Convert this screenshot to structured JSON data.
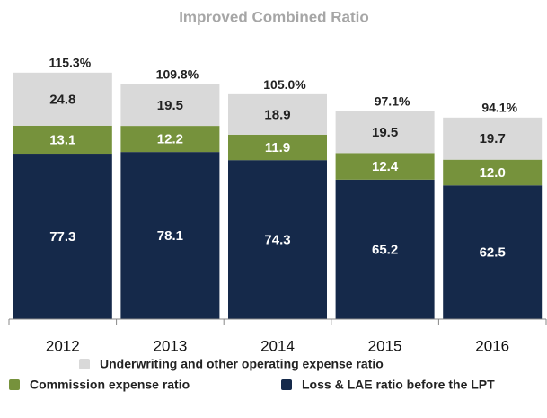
{
  "chart_data": {
    "type": "stacked_bar",
    "title": "Improved Combined Ratio",
    "categories": [
      "2012",
      "2013",
      "2014",
      "2015",
      "2016"
    ],
    "series": [
      {
        "name": "Loss & LAE ratio before the LPT",
        "color": "#15294a",
        "values": [
          77.3,
          78.1,
          74.3,
          65.2,
          62.5
        ]
      },
      {
        "name": "Commission expense ratio",
        "color": "#76923c",
        "values": [
          13.1,
          12.2,
          11.9,
          12.4,
          12.0
        ],
        "value_labels": [
          "13.1",
          "12.2",
          "11.9",
          "12.4",
          "12.0"
        ]
      },
      {
        "name": "Underwriting and other operating expense ratio",
        "color": "#d9d9d9",
        "values": [
          24.8,
          19.5,
          18.9,
          19.5,
          19.7
        ]
      }
    ],
    "totals": [
      115.3,
      109.8,
      105.0,
      97.1,
      94.1
    ],
    "total_labels": [
      "115.3%",
      "109.8%",
      "105.0%",
      "97.1%",
      "94.1%"
    ]
  }
}
